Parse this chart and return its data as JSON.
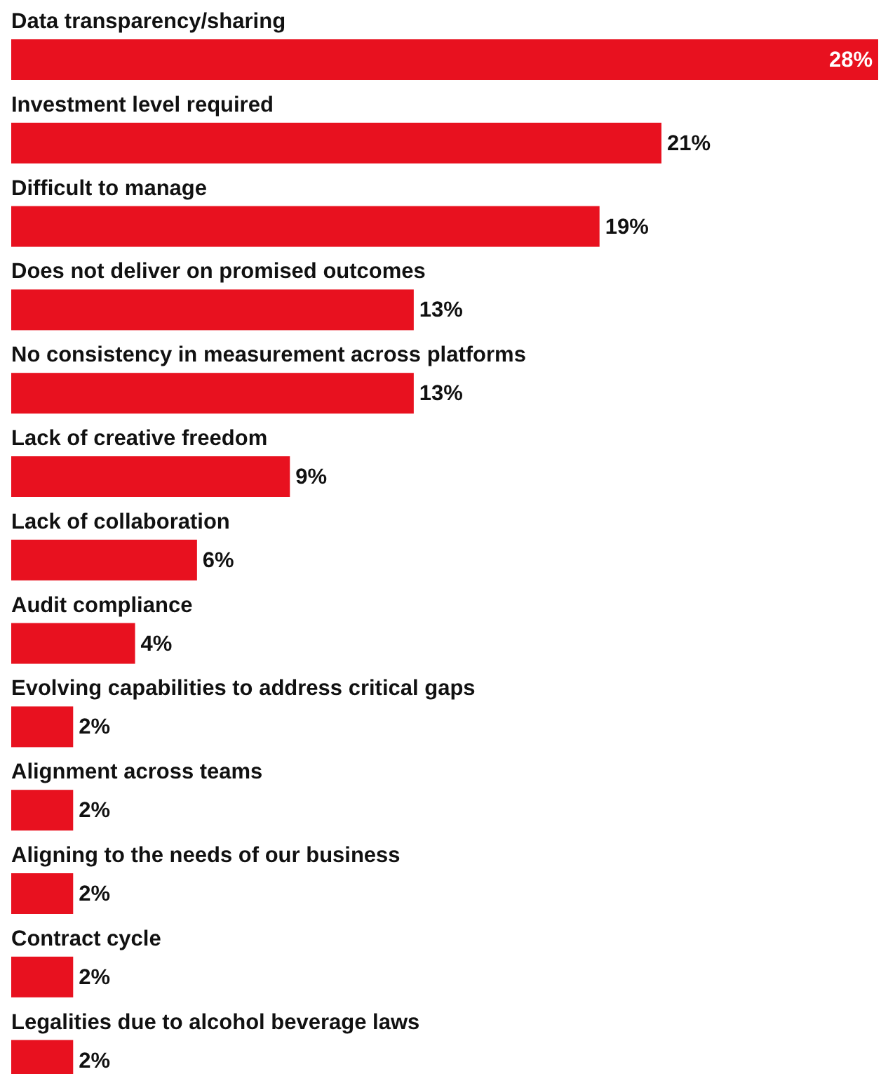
{
  "chart_data": {
    "type": "bar",
    "orientation": "horizontal",
    "categories": [
      "Data transparency/sharing",
      "Investment level required",
      "Difficult to manage",
      "Does not deliver on promised outcomes",
      "No consistency in measurement across platforms",
      "Lack of creative freedom",
      "Lack of collaboration",
      "Audit compliance",
      "Evolving capabilities to address critical gaps",
      "Alignment across teams",
      "Aligning to the needs of our business",
      "Contract cycle",
      "Legalities due to alcohol beverage laws"
    ],
    "values": [
      28,
      21,
      19,
      13,
      13,
      9,
      6,
      4,
      2,
      2,
      2,
      2,
      2
    ],
    "value_labels": [
      "28%",
      "21%",
      "19%",
      "13%",
      "13%",
      "9%",
      "6%",
      "4%",
      "2%",
      "2%",
      "2%",
      "2%",
      "2%"
    ],
    "color": "#e8111f"
  }
}
